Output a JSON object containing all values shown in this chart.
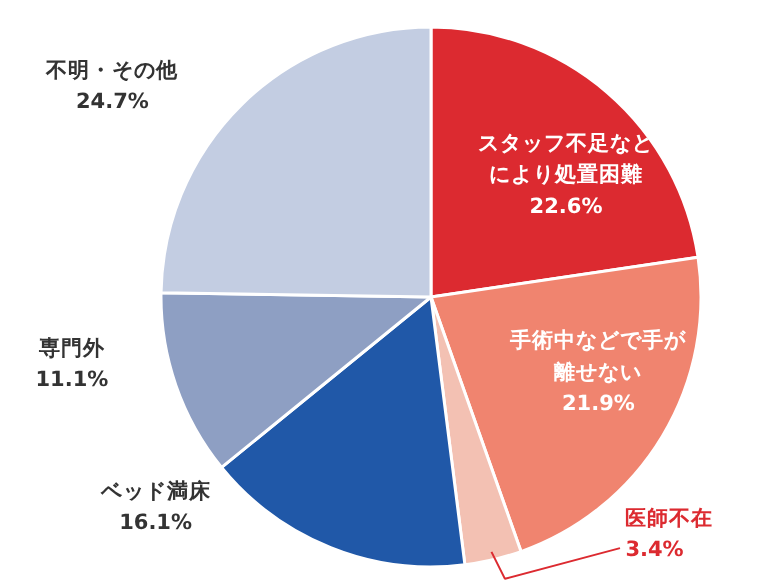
{
  "chart_data": {
    "type": "pie",
    "categories": [
      "スタッフ不足などにより処置困難",
      "手術中などで手が離せない",
      "医師不在",
      "ベッド満床",
      "専門外",
      "不明・その他"
    ],
    "values": [
      22.6,
      21.9,
      3.4,
      16.1,
      11.1,
      24.7
    ],
    "value_labels": [
      "22.6%",
      "21.9%",
      "3.4%",
      "16.1%",
      "11.1%",
      "24.7%"
    ],
    "colors": [
      "#dc2a30",
      "#f0846f",
      "#f3c1b3",
      "#2058a8",
      "#8e9fc3",
      "#c3cde2"
    ]
  }
}
